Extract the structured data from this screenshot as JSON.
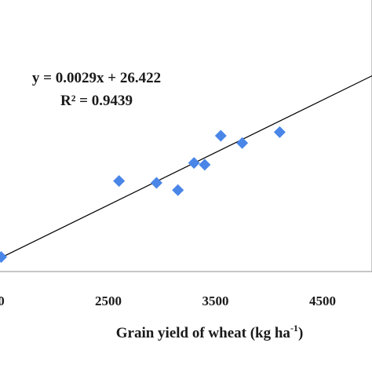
{
  "chart_data": {
    "type": "scatter",
    "title": "",
    "xlabel": "Grain yield of wheat (kg ha",
    "xlabel_sup": "-1",
    "xlabel_suffix": ")",
    "ylabel": "",
    "x_ticks": [
      "0",
      "2500",
      "3500",
      "4500"
    ],
    "x_tick_values": [
      1500,
      2500,
      3500,
      4500
    ],
    "xlim": [
      1500,
      5500
    ],
    "ylim": [
      30,
      45
    ],
    "grid": false,
    "legend": "none",
    "marker_color": "#4a86e8",
    "line_color": "#000000",
    "equation": "y = 0.0029x + 26.422",
    "r_squared": "R² = 0.9439",
    "trendline": {
      "slope": 0.0029,
      "intercept": 26.422
    },
    "points": [
      {
        "x": 1500,
        "y": 30.8
      },
      {
        "x": 2600,
        "y": 35.0
      },
      {
        "x": 2950,
        "y": 34.9
      },
      {
        "x": 3150,
        "y": 34.5
      },
      {
        "x": 3300,
        "y": 36.0
      },
      {
        "x": 3400,
        "y": 35.9
      },
      {
        "x": 3550,
        "y": 37.5
      },
      {
        "x": 3750,
        "y": 37.1
      },
      {
        "x": 4100,
        "y": 37.7
      }
    ]
  }
}
